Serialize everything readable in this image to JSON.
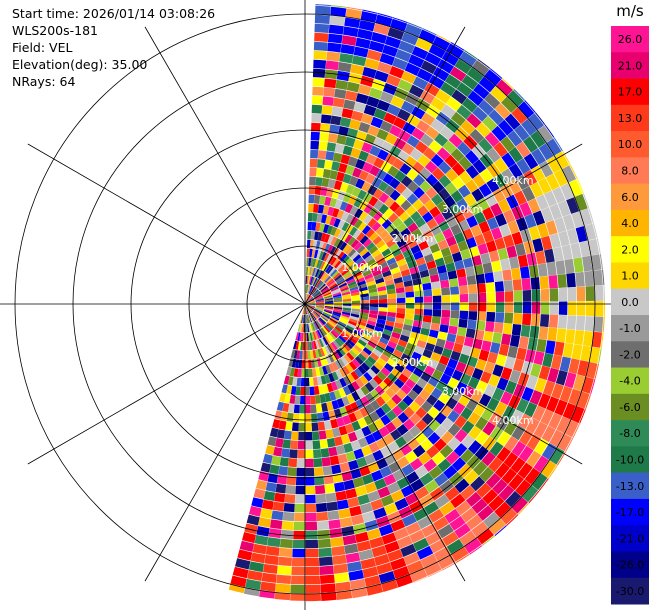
{
  "header": {
    "start_time": "Start time: 2026/01/14 03:08:26",
    "instrument": "WLS200s-181",
    "field": "Field: VEL",
    "elevation": "Elevation(deg): 35.00",
    "nrays": "NRays: 64"
  },
  "range_ring_labels": [
    "1.00km",
    "2.00km",
    "3.00km",
    "4.00km"
  ],
  "colorbar": {
    "unit": "m/s",
    "ticks": [
      "26.0",
      "21.0",
      "17.0",
      "13.0",
      "10.0",
      "8.0",
      "6.0",
      "4.0",
      "2.0",
      "1.0",
      "0.0",
      "-1.0",
      "-2.0",
      "-4.0",
      "-6.0",
      "-8.0",
      "-10.0",
      "-13.0",
      "-17.0",
      "-21.0",
      "-26.0",
      "-30.0"
    ],
    "colors": [
      "#ff1493",
      "#e8006f",
      "#ff0000",
      "#ff3a1a",
      "#ff5b2e",
      "#ff7a55",
      "#ff9a3c",
      "#ffb400",
      "#ffff00",
      "#ffd700",
      "#c8c8c8",
      "#9a9a9a",
      "#6e6e6e",
      "#9acd32",
      "#6b8e23",
      "#2e8b57",
      "#1f7a4a",
      "#3b5fc8",
      "#0000ff",
      "#0000cd",
      "#00008b",
      "#191970"
    ]
  }
}
